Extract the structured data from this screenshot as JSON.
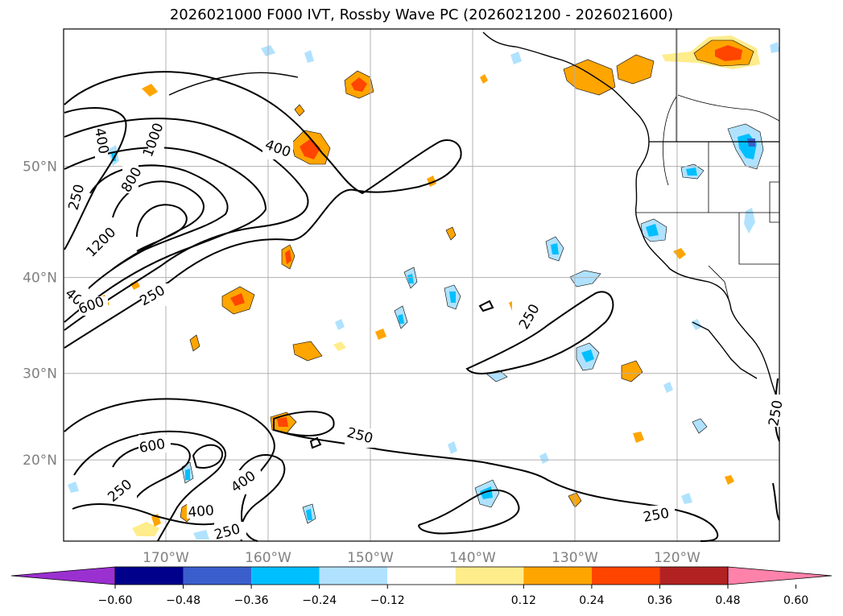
{
  "title": "2026021000 F000 IVT, Rossby Wave PC (2026021200 - 2026021600)",
  "lat_ticks": [
    {
      "label": "50°N",
      "lat": 50
    },
    {
      "label": "40°N",
      "lat": 40
    },
    {
      "label": "30°N",
      "lat": 30
    },
    {
      "label": "20°N",
      "lat": 20
    }
  ],
  "lon_ticks": [
    {
      "label": "170°W",
      "lon": -170
    },
    {
      "label": "160°W",
      "lon": -160
    },
    {
      "label": "150°W",
      "lon": -150
    },
    {
      "label": "140°W",
      "lon": -140
    },
    {
      "label": "130°W",
      "lon": -130
    },
    {
      "label": "120°W",
      "lon": -120
    }
  ],
  "map_extent": {
    "lon_min": -180,
    "lon_max": -110,
    "lat_min": 10,
    "lat_max": 60
  },
  "colorbar": {
    "labels": [
      "-0.60",
      "-0.48",
      "-0.36",
      "-0.24",
      "-0.12",
      "0.12",
      "0.24",
      "0.36",
      "0.48",
      "0.60"
    ],
    "label_text": [
      "−0.60",
      "−0.48",
      "−0.36",
      "−0.24",
      "−0.12",
      "0.12",
      "0.24",
      "0.36",
      "0.48",
      "0.60"
    ],
    "colors": [
      "#9b30d0",
      "#00008b",
      "#3a5fcd",
      "#00bfff",
      "#b0e2ff",
      "#ffffff",
      "#ffec8b",
      "#ffa500",
      "#ff4500",
      "#b22222",
      "#ff82ab"
    ]
  },
  "contour_labels": [
    {
      "text": "400"
    },
    {
      "text": "1000"
    },
    {
      "text": "800"
    },
    {
      "text": "250"
    },
    {
      "text": "1200"
    },
    {
      "text": "400"
    },
    {
      "text": "600"
    },
    {
      "text": "250"
    },
    {
      "text": "400"
    },
    {
      "text": "250"
    },
    {
      "text": "600"
    },
    {
      "text": "250"
    },
    {
      "text": "400"
    },
    {
      "text": "400"
    },
    {
      "text": "250"
    },
    {
      "text": "250"
    },
    {
      "text": "250"
    },
    {
      "text": "250"
    }
  ],
  "colors": {
    "coast": "#000000",
    "grid": "#b0b0b0",
    "contour": "#000000"
  }
}
